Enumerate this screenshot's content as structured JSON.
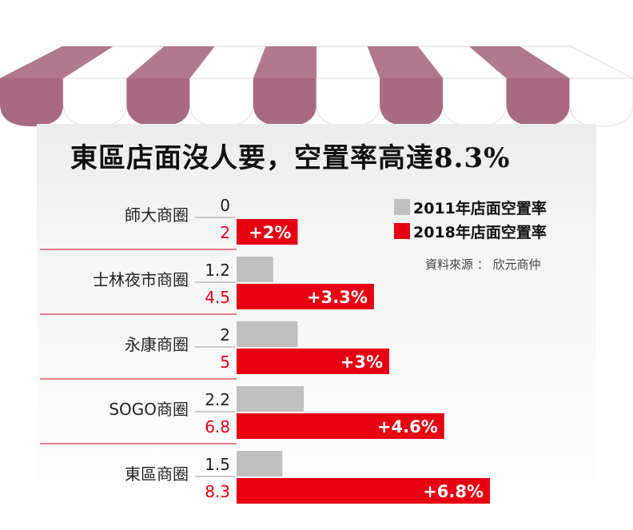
{
  "title": "東區店面沒人要，空置率高達8.3%",
  "legend": {
    "items": [
      {
        "label": "2011年店面空置率",
        "color": "#c0c0c0"
      },
      {
        "label": "2018年店面空置率",
        "color": "#e60012"
      }
    ]
  },
  "source": "資料來源 ： 欣元商仲",
  "colors": {
    "bar_2011": "#c0c0c0",
    "bar_2018": "#e60012",
    "awning_stripe": "#a86a82",
    "divider": "#d4384a"
  },
  "chart_data": {
    "type": "bar",
    "orientation": "horizontal",
    "title": "東區店面沒人要，空置率高達8.3%",
    "categories": [
      "師大商圈",
      "士林夜市商圈",
      "永康商圈",
      "SOGO商圈",
      "東區商圈"
    ],
    "series": [
      {
        "name": "2011年店面空置率",
        "values": [
          0,
          1.2,
          2,
          2.2,
          1.5
        ],
        "labels": [
          "0",
          "1.2",
          "2",
          "2.2",
          "1.5"
        ]
      },
      {
        "name": "2018年店面空置率",
        "values": [
          2,
          4.5,
          5,
          6.8,
          8.3
        ],
        "labels": [
          "2",
          "4.5",
          "5",
          "6.8",
          "8.3"
        ]
      }
    ],
    "annotations": [
      "+2%",
      "+3.3%",
      "+3%",
      "+4.6%",
      "+6.8%"
    ],
    "xlim": [
      0,
      8.3
    ],
    "grid": false,
    "legend_position": "top-right"
  }
}
